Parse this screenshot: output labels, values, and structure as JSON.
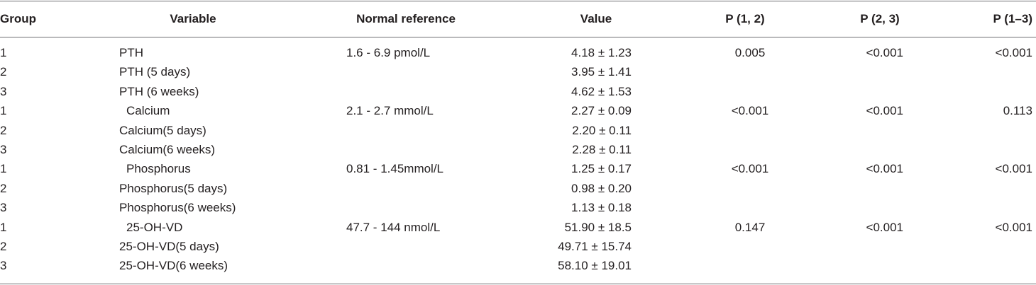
{
  "table": {
    "headers": [
      "Group",
      "Variable",
      "Normal reference",
      "Value",
      "P (1, 2)",
      "P (2, 3)",
      "P (1–3)"
    ],
    "rows": [
      [
        "1",
        "PTH",
        "1.6 - 6.9 pmol/L",
        "4.18 ± 1.23",
        "0.005",
        "<0.001",
        "<0.001"
      ],
      [
        "2",
        "PTH (5 days)",
        null,
        "3.95 ± 1.41",
        null,
        null,
        null
      ],
      [
        "3",
        "PTH (6 weeks)",
        null,
        "4.62 ± 1.53",
        null,
        null,
        null
      ],
      [
        "1",
        "Calcium",
        "2.1 - 2.7 mmol/L",
        "2.27 ± 0.09",
        "<0.001",
        "<0.001",
        "0.113"
      ],
      [
        "2",
        "Calcium(5 days)",
        null,
        "2.20 ± 0.11",
        null,
        null,
        null
      ],
      [
        "3",
        "Calcium(6 weeks)",
        null,
        "2.28 ± 0.11",
        null,
        null,
        null
      ],
      [
        "1",
        "Phosphorus",
        "0.81 - 1.45mmol/L",
        "1.25 ± 0.17",
        "<0.001",
        "<0.001",
        "<0.001"
      ],
      [
        "2",
        "Phosphorus(5 days)",
        null,
        "0.98 ± 0.20",
        null,
        null,
        null
      ],
      [
        "3",
        "Phosphorus(6 weeks)",
        null,
        "1.13 ± 0.18",
        null,
        null,
        null
      ],
      [
        "1",
        "25-OH-VD",
        "47.7 - 144 nmol/L",
        "51.90 ± 18.5",
        "0.147",
        "<0.001",
        "<0.001"
      ],
      [
        "2",
        "25-OH-VD(5 days)",
        null,
        "49.71 ± 15.74",
        null,
        null,
        null
      ],
      [
        "3",
        "25-OH-VD(6 weeks)",
        null,
        "58.10 ± 19.01",
        null,
        null,
        null
      ]
    ]
  }
}
